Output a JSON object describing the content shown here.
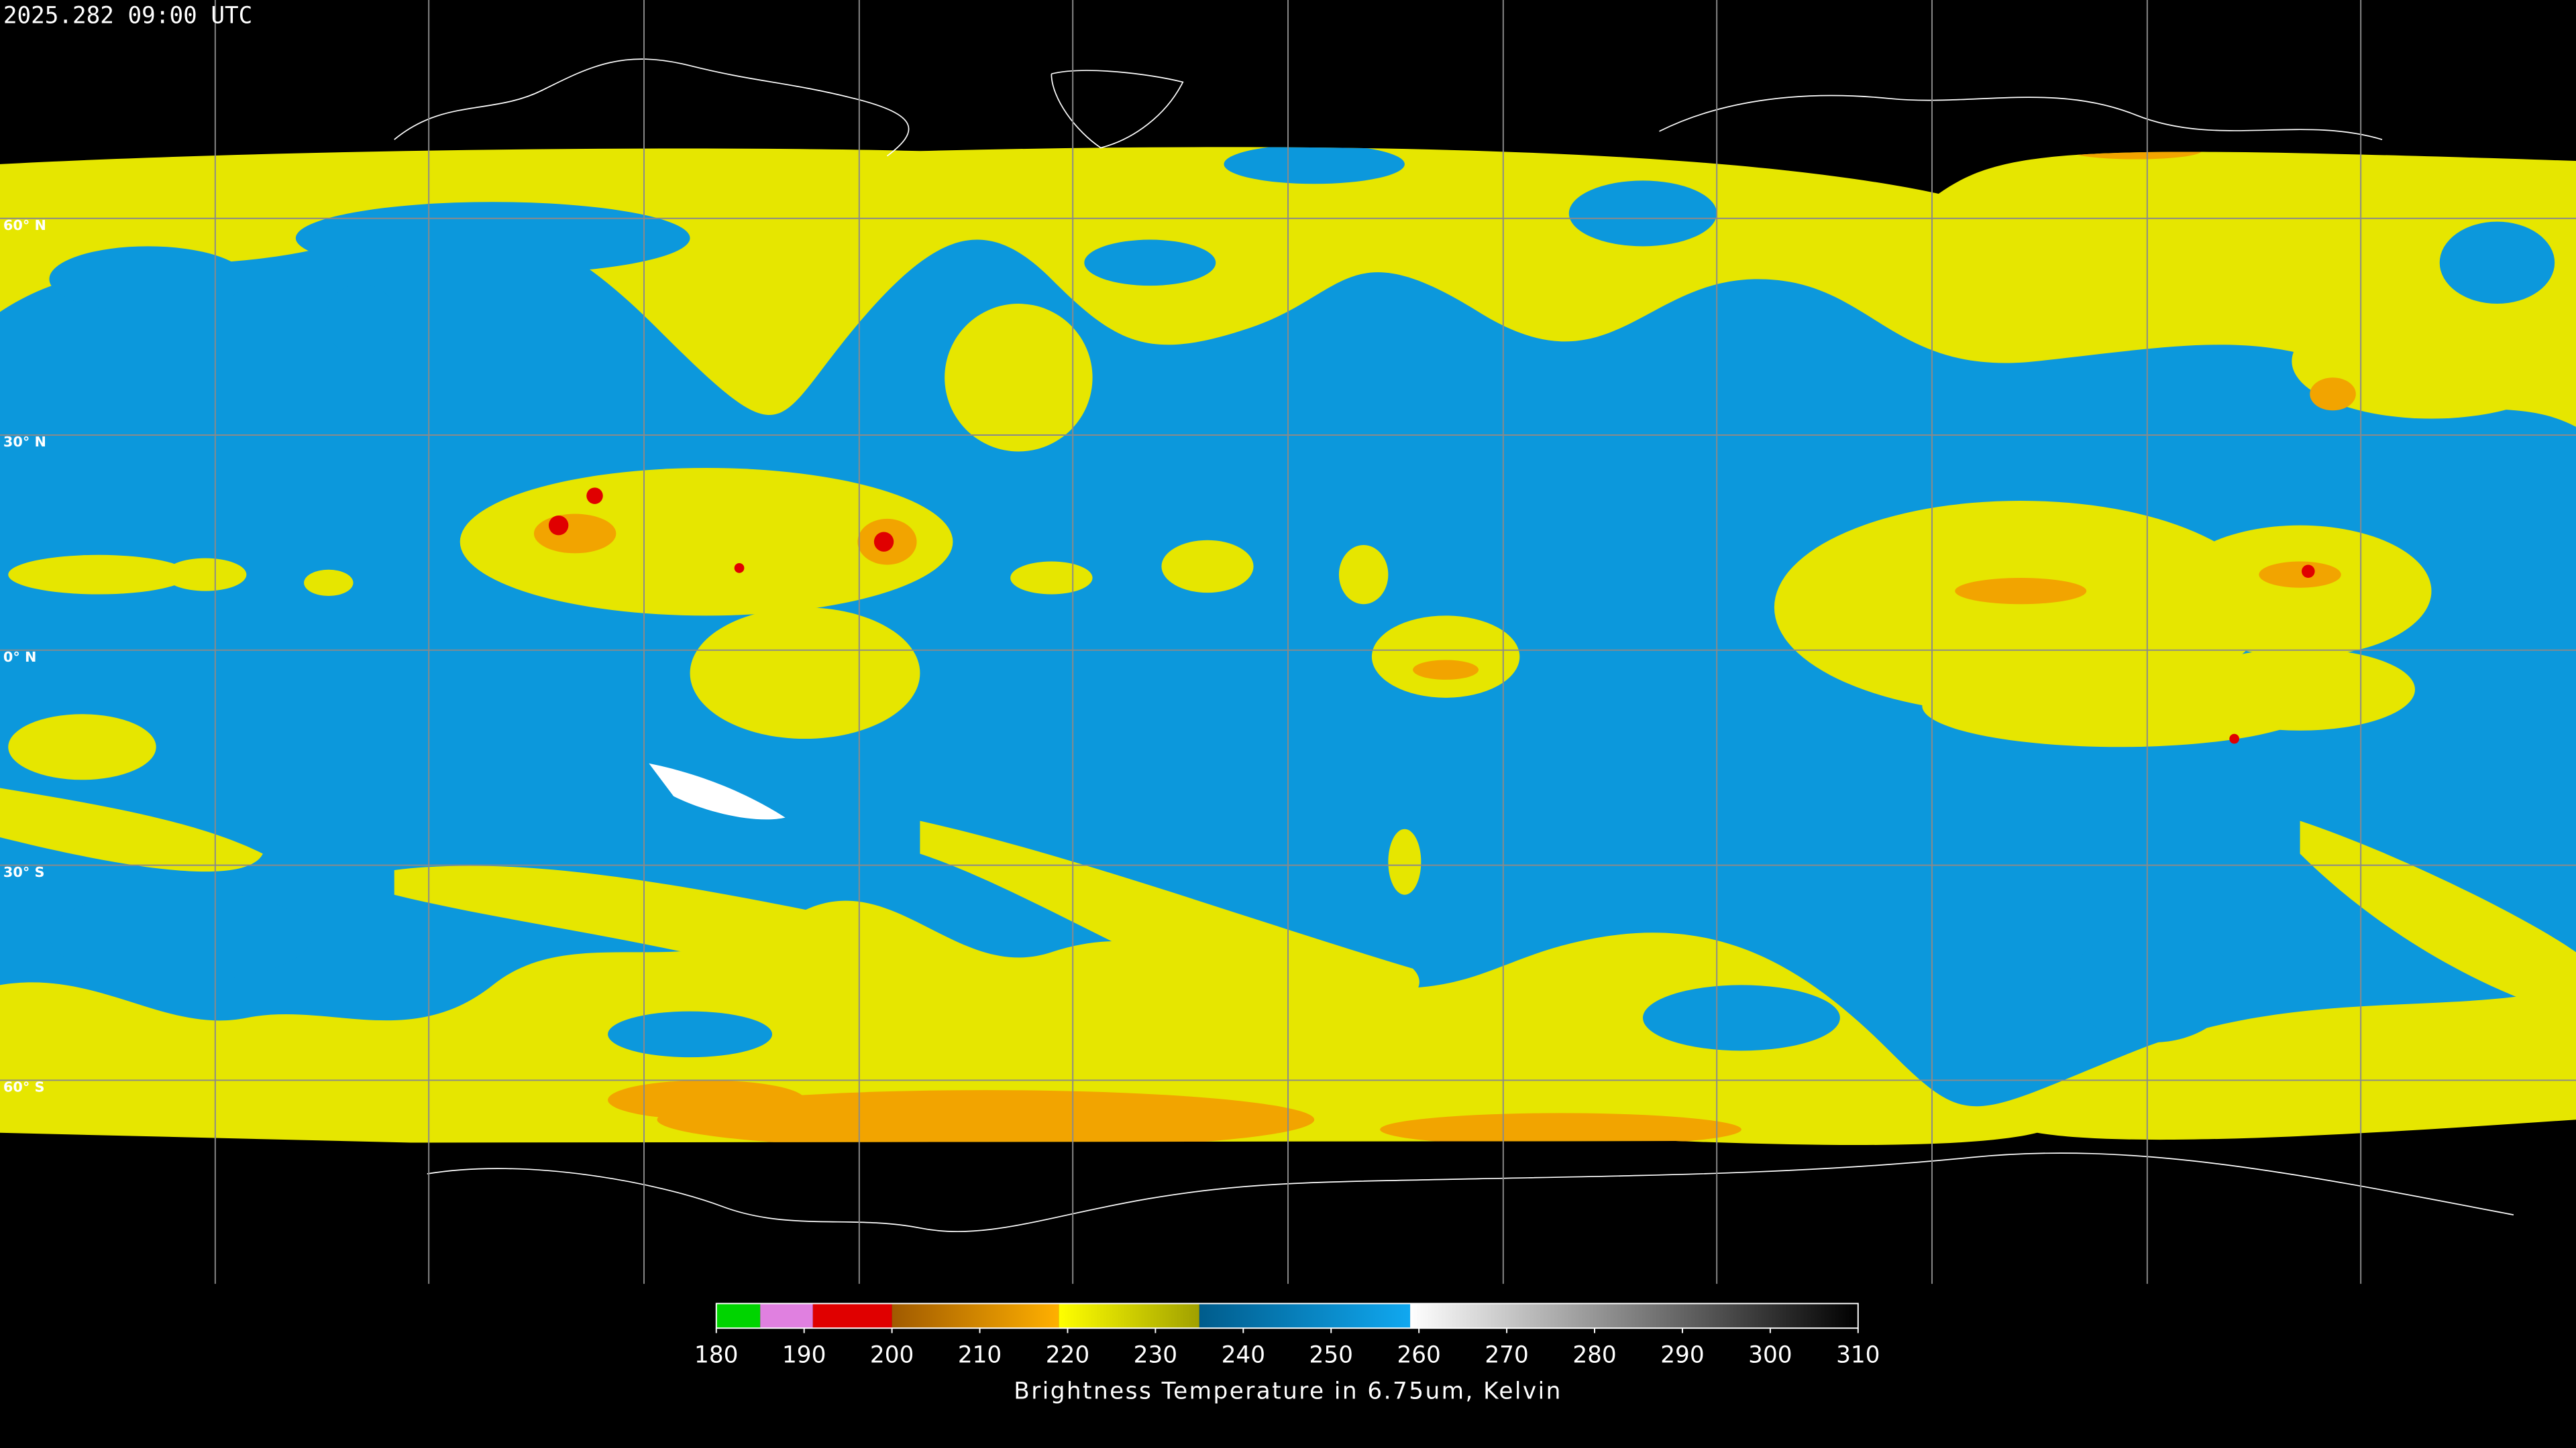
{
  "timestamp": "2025.282 09:00 UTC",
  "latitude_labels": [
    "60° N",
    "30° N",
    "0° N",
    "30° S",
    "60° S"
  ],
  "colorbar": {
    "title": "Brightness Temperature in 6.75um, Kelvin",
    "range": [
      180,
      310
    ],
    "ticks": [
      180,
      190,
      200,
      210,
      220,
      230,
      240,
      250,
      260,
      270,
      280,
      290,
      300,
      310
    ],
    "segments": [
      {
        "from": 180,
        "to": 185,
        "colors": [
          "#00d400",
          "#00d400"
        ]
      },
      {
        "from": 185,
        "to": 191,
        "colors": [
          "#e080e0",
          "#e080e0"
        ]
      },
      {
        "from": 191,
        "to": 200,
        "colors": [
          "#e00000",
          "#e00000"
        ]
      },
      {
        "from": 200,
        "to": 219,
        "colors": [
          "#a05a00",
          "#ffb000"
        ]
      },
      {
        "from": 219,
        "to": 235,
        "colors": [
          "#ffff00",
          "#a0a000"
        ]
      },
      {
        "from": 235,
        "to": 259,
        "colors": [
          "#005c8c",
          "#10a8f0"
        ]
      },
      {
        "from": 259,
        "to": 310,
        "colors": [
          "#ffffff",
          "#000000"
        ]
      }
    ]
  }
}
